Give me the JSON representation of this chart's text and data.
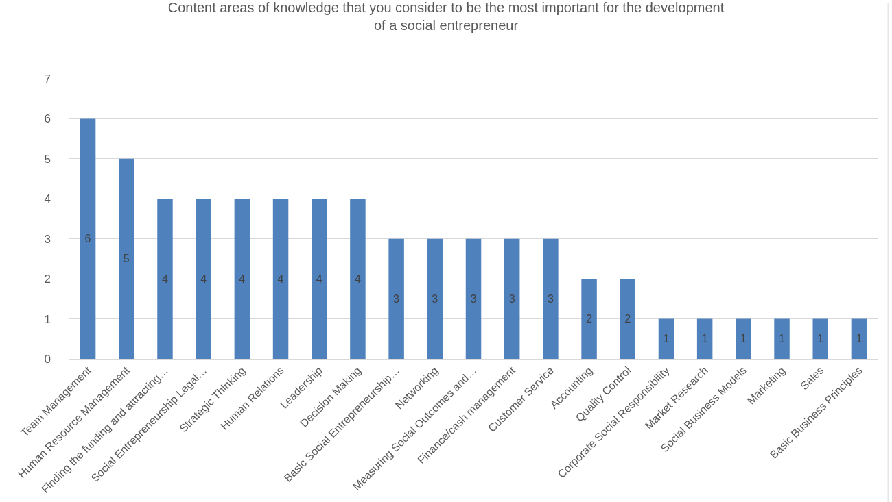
{
  "chart_data": {
    "type": "bar",
    "title": "Content areas of knowledge that you consider to be the most important for the development of a social entrepreneur",
    "categories": [
      "Team Management",
      "Human Resource Management",
      "Finding the funding and attracting…",
      "Social Entrepreneurship Legal…",
      "Strategic Thinking",
      "Human Relations",
      "Leadership",
      "Decision Making",
      "Basic Social Entrepreneurship…",
      "Networking",
      "Measuring Social Outcomes and…",
      "Finance/cash management",
      "Customer Service",
      "Accounting",
      "Quality Control",
      "Corporate Social Responsibility",
      "Market Research",
      "Social Business Models",
      "Marketing",
      "Sales",
      "Basic Business Principles"
    ],
    "values": [
      6,
      5,
      4,
      4,
      4,
      4,
      4,
      4,
      3,
      3,
      3,
      3,
      3,
      2,
      2,
      1,
      1,
      1,
      1,
      1,
      1
    ],
    "color": "#4f81bd",
    "ylim": [
      0,
      7
    ],
    "yticks": [
      0,
      1,
      2,
      3,
      4,
      5,
      6,
      7
    ],
    "grid": "y",
    "data_labels": true
  }
}
